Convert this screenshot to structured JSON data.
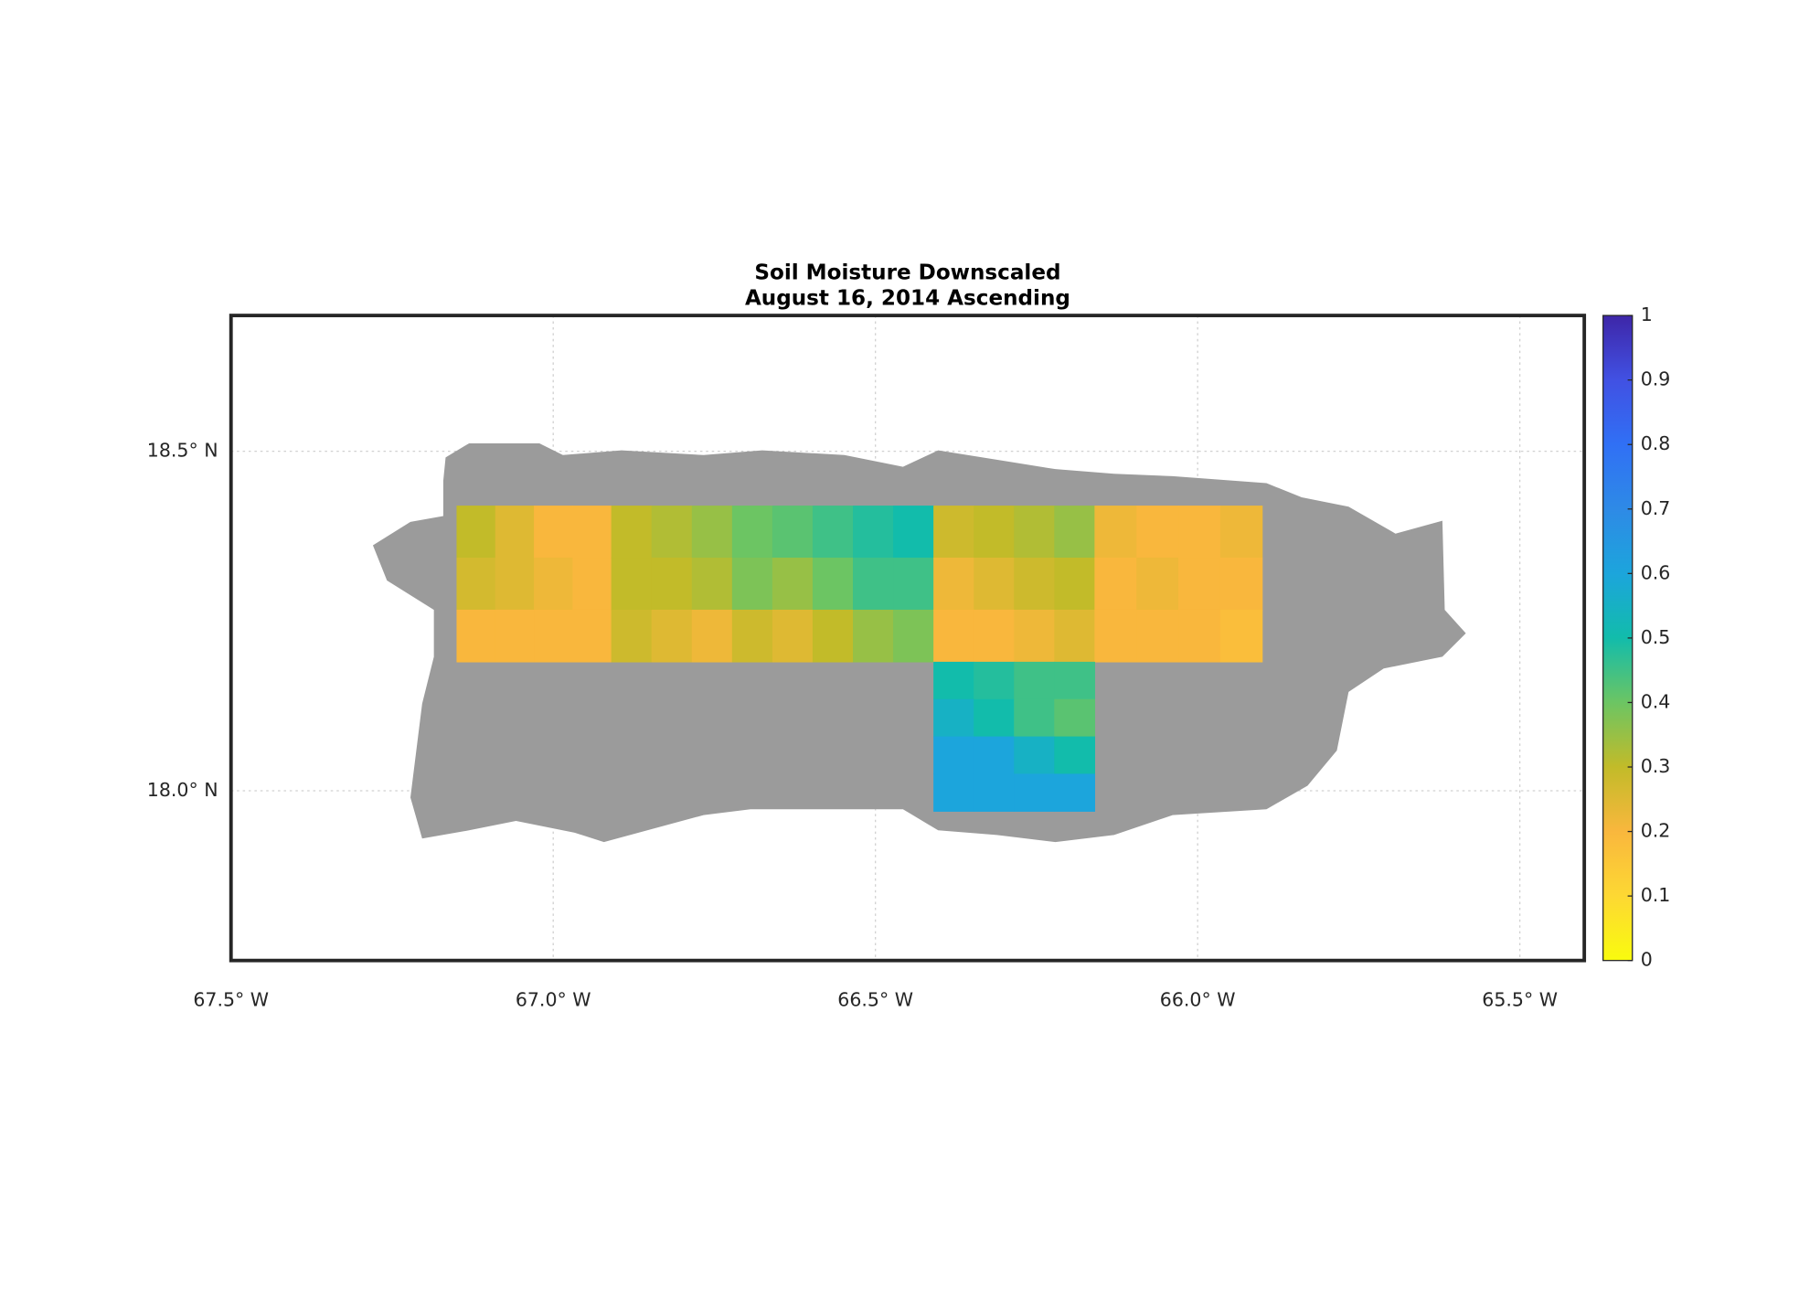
{
  "chart_data": {
    "type": "map-grid",
    "title": "Soil Moisture Downscaled",
    "subtitle": "August 16, 2014 Ascending",
    "xlim": [
      -67.5,
      -65.4
    ],
    "ylim": [
      17.75,
      18.7
    ],
    "xticks": [
      {
        "value": -67.5,
        "label": "67.5° W"
      },
      {
        "value": -67.0,
        "label": "67.0° W"
      },
      {
        "value": -66.5,
        "label": "66.5° W"
      },
      {
        "value": -66.0,
        "label": "66.0° W"
      },
      {
        "value": -65.5,
        "label": "65.5° W"
      }
    ],
    "yticks": [
      {
        "value": 18.0,
        "label": "18.0° N"
      },
      {
        "value": 18.5,
        "label": "18.5° N"
      }
    ],
    "grid": true,
    "clim": [
      0,
      1
    ],
    "cticks": [
      0,
      0.1,
      0.2,
      0.3,
      0.4,
      0.5,
      0.6,
      0.7,
      0.8,
      0.9,
      1
    ],
    "colormap": [
      "#f9fb0e",
      "#fdd833",
      "#f9b73d",
      "#c2bb29",
      "#6cc563",
      "#12bcab",
      "#1ca5dc",
      "#2e8ae6",
      "#3070f5",
      "#4151e3",
      "#3e26a8"
    ],
    "tiles": [
      {
        "lon": [
          -67.15,
          -66.91
        ],
        "lat": [
          18.19,
          18.42
        ],
        "values": [
          [
            0.3,
            0.25,
            0.2,
            0.2
          ],
          [
            0.27,
            0.25,
            0.22,
            0.2
          ],
          [
            0.2,
            0.2,
            0.2,
            0.2
          ]
        ]
      },
      {
        "lon": [
          -66.91,
          -66.41
        ],
        "lat": [
          18.19,
          18.42
        ],
        "values": [
          [
            0.3,
            0.32,
            0.35,
            0.4,
            0.42,
            0.45,
            0.48,
            0.5
          ],
          [
            0.3,
            0.3,
            0.32,
            0.38,
            0.35,
            0.4,
            0.45,
            0.45
          ],
          [
            0.28,
            0.25,
            0.22,
            0.28,
            0.25,
            0.3,
            0.35,
            0.38
          ]
        ]
      },
      {
        "lon": [
          -66.41,
          -66.16
        ],
        "lat": [
          18.19,
          18.42
        ],
        "values": [
          [
            0.28,
            0.3,
            0.32,
            0.35
          ],
          [
            0.22,
            0.25,
            0.28,
            0.3
          ],
          [
            0.2,
            0.2,
            0.22,
            0.25
          ]
        ]
      },
      {
        "lon": [
          -66.16,
          -65.9
        ],
        "lat": [
          18.19,
          18.42
        ],
        "values": [
          [
            0.22,
            0.2,
            0.2,
            0.22
          ],
          [
            0.2,
            0.22,
            0.2,
            0.2
          ],
          [
            0.2,
            0.2,
            0.2,
            0.18
          ]
        ]
      },
      {
        "lon": [
          -66.41,
          -66.16
        ],
        "lat": [
          17.97,
          18.19
        ],
        "values": [
          [
            0.5,
            0.48,
            0.45,
            0.45
          ],
          [
            0.55,
            0.5,
            0.45,
            0.42
          ],
          [
            0.6,
            0.6,
            0.55,
            0.5
          ],
          [
            0.6,
            0.6,
            0.6,
            0.6
          ]
        ]
      }
    ]
  }
}
